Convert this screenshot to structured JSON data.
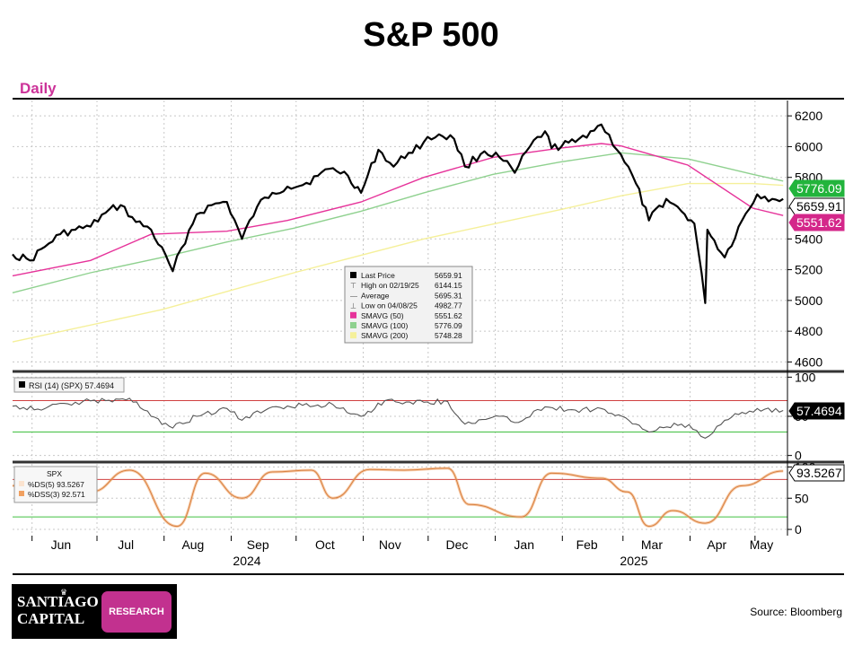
{
  "title": "S&P 500",
  "period_label": "Daily",
  "source": "Source: Bloomberg",
  "logo": {
    "line1": "SANTIAGO",
    "line2": "CAPITAL",
    "badge": "RESEARCH",
    "crown_icon": "crown-icon"
  },
  "colors": {
    "price": "#000000",
    "sma50": "#e6339a",
    "sma100": "#8fd18f",
    "sma200": "#f5f09a",
    "rsi": "#555555",
    "stoch": "#f0a060",
    "upper_band": "#d04040",
    "lower_band": "#40c040",
    "sma100_tag": "#22b43c",
    "sma50_tag": "#d4278a",
    "title_accent": "#cc3399"
  },
  "chart_data": [
    {
      "type": "line",
      "name": "price-panel",
      "x_axis": {
        "months": [
          "Jun",
          "Jul",
          "Aug",
          "Sep",
          "Oct",
          "Nov",
          "Dec",
          "Jan",
          "Feb",
          "Mar",
          "Apr",
          "May"
        ],
        "years": [
          "2024",
          "2025"
        ]
      },
      "ylim": [
        4550,
        6300
      ],
      "yticks": [
        4600,
        4800,
        5000,
        5200,
        5400,
        5600,
        5800,
        6000,
        6200
      ],
      "grid": true,
      "legend": {
        "placement": "center",
        "entries": [
          {
            "label": "Last Price",
            "value": "5659.91"
          },
          {
            "label": "High on 02/19/25",
            "value": "6144.15"
          },
          {
            "label": "Average",
            "value": "5695.31"
          },
          {
            "label": "Low on 04/08/25",
            "value": "4982.77"
          },
          {
            "label": "SMAVG (50)",
            "value": "5551.62"
          },
          {
            "label": "SMAVG (100)",
            "value": "5776.09"
          },
          {
            "label": "SMAVG (200)",
            "value": "5748.28"
          }
        ]
      },
      "tags": {
        "sma100": "5776.09",
        "last": "5659.91",
        "sma50": "5551.62"
      },
      "series": [
        {
          "key": "price",
          "x": [
            "2024-05-23",
            "2024-05-31",
            "2024-06-07",
            "2024-06-14",
            "2024-06-21",
            "2024-06-28",
            "2024-07-05",
            "2024-07-12",
            "2024-07-19",
            "2024-07-26",
            "2024-08-05",
            "2024-08-09",
            "2024-08-16",
            "2024-08-23",
            "2024-08-30",
            "2024-09-06",
            "2024-09-13",
            "2024-09-20",
            "2024-09-27",
            "2024-10-04",
            "2024-10-11",
            "2024-10-18",
            "2024-10-25",
            "2024-10-31",
            "2024-11-08",
            "2024-11-15",
            "2024-11-22",
            "2024-11-29",
            "2024-12-06",
            "2024-12-13",
            "2024-12-18",
            "2024-12-27",
            "2025-01-03",
            "2025-01-10",
            "2025-01-17",
            "2025-01-24",
            "2025-01-27",
            "2025-02-07",
            "2025-02-14",
            "2025-02-19",
            "2025-02-28",
            "2025-03-07",
            "2025-03-13",
            "2025-03-21",
            "2025-03-28",
            "2025-04-03",
            "2025-04-08",
            "2025-04-09",
            "2025-04-17",
            "2025-04-25",
            "2025-05-02",
            "2025-05-09",
            "2025-05-14"
          ],
          "values": [
            5300,
            5260,
            5350,
            5430,
            5460,
            5480,
            5570,
            5620,
            5510,
            5460,
            5190,
            5340,
            5560,
            5620,
            5640,
            5400,
            5610,
            5700,
            5740,
            5750,
            5810,
            5860,
            5810,
            5700,
            5980,
            5870,
            5960,
            6030,
            6080,
            6050,
            5870,
            5970,
            5930,
            5830,
            6000,
            6100,
            5990,
            6030,
            6100,
            6144,
            5950,
            5760,
            5520,
            5660,
            5580,
            5500,
            4983,
            5460,
            5280,
            5520,
            5690,
            5660,
            5660
          ]
        },
        {
          "key": "sma50",
          "x": [
            "2024-05-23",
            "2024-06-28",
            "2024-07-26",
            "2024-08-30",
            "2024-09-27",
            "2024-10-31",
            "2024-11-29",
            "2024-12-31",
            "2025-01-31",
            "2025-02-19",
            "2025-02-28",
            "2025-03-31",
            "2025-04-30",
            "2025-05-14"
          ],
          "values": [
            5160,
            5260,
            5430,
            5450,
            5520,
            5640,
            5800,
            5930,
            5990,
            6020,
            6005,
            5880,
            5600,
            5552
          ]
        },
        {
          "key": "sma100",
          "x": [
            "2024-05-23",
            "2024-06-28",
            "2024-07-31",
            "2024-08-30",
            "2024-09-30",
            "2024-10-31",
            "2024-11-29",
            "2024-12-31",
            "2025-01-31",
            "2025-02-28",
            "2025-03-31",
            "2025-04-30",
            "2025-05-14"
          ],
          "values": [
            5050,
            5180,
            5280,
            5380,
            5470,
            5580,
            5700,
            5820,
            5900,
            5960,
            5920,
            5820,
            5776
          ]
        },
        {
          "key": "sma200",
          "x": [
            "2024-05-23",
            "2024-07-31",
            "2024-09-30",
            "2024-11-29",
            "2025-01-31",
            "2025-02-28",
            "2025-03-31",
            "2025-04-30",
            "2025-05-14"
          ],
          "values": [
            4730,
            4940,
            5180,
            5400,
            5590,
            5680,
            5760,
            5760,
            5748
          ]
        }
      ]
    },
    {
      "type": "line",
      "name": "rsi-panel",
      "label": "RSI (14) (SPX) 57.4694",
      "current": "57.4694",
      "ylim": [
        -5,
        105
      ],
      "yticks": [
        0,
        50,
        100
      ],
      "bands": [
        70,
        30
      ],
      "x": [
        "2024-05-23",
        "2024-06-07",
        "2024-06-21",
        "2024-07-05",
        "2024-07-16",
        "2024-07-26",
        "2024-08-05",
        "2024-08-16",
        "2024-08-30",
        "2024-09-06",
        "2024-09-20",
        "2024-10-04",
        "2024-10-18",
        "2024-10-31",
        "2024-11-11",
        "2024-11-29",
        "2024-12-10",
        "2024-12-18",
        "2025-01-03",
        "2025-01-10",
        "2025-01-24",
        "2025-02-07",
        "2025-02-19",
        "2025-03-07",
        "2025-03-13",
        "2025-03-28",
        "2025-04-04",
        "2025-04-08",
        "2025-04-17",
        "2025-04-25",
        "2025-05-02",
        "2025-05-14"
      ],
      "values": [
        63,
        60,
        68,
        70,
        73,
        50,
        35,
        50,
        60,
        45,
        62,
        64,
        65,
        50,
        70,
        68,
        69,
        40,
        50,
        42,
        62,
        58,
        60,
        40,
        30,
        40,
        32,
        22,
        45,
        55,
        60,
        57.47
      ]
    },
    {
      "type": "line",
      "name": "stochastic-panel",
      "labels": [
        "SPX",
        "%DS(5)  93.5267",
        "%DSS(3) 92.571"
      ],
      "current": "93.5267",
      "ylim": [
        -10,
        105
      ],
      "yticks": [
        0,
        50,
        100
      ],
      "bands": [
        80,
        20
      ],
      "x": [
        "2024-05-23",
        "2024-06-10",
        "2024-06-28",
        "2024-07-16",
        "2024-08-07",
        "2024-08-20",
        "2024-09-06",
        "2024-09-20",
        "2024-10-08",
        "2024-10-18",
        "2024-11-04",
        "2024-11-20",
        "2024-12-10",
        "2024-12-20",
        "2025-01-13",
        "2025-01-27",
        "2025-02-19",
        "2025-03-03",
        "2025-03-13",
        "2025-03-24",
        "2025-04-08",
        "2025-04-25",
        "2025-05-14"
      ],
      "values": [
        70,
        80,
        60,
        95,
        5,
        90,
        50,
        92,
        95,
        50,
        96,
        95,
        98,
        40,
        20,
        90,
        82,
        60,
        5,
        30,
        10,
        70,
        93.5
      ]
    }
  ]
}
